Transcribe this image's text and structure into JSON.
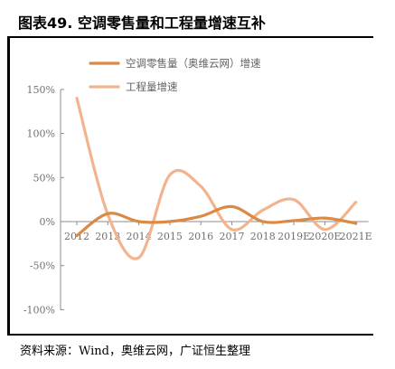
{
  "title": "图表49.  空调零售量和工程量增速互补",
  "source": "资料来源：Wind，奥维云网，广证恒生整理",
  "chart_data": {
    "type": "line",
    "categories": [
      "2012",
      "2013",
      "2014",
      "2015",
      "2016",
      "2017",
      "2018",
      "2019E",
      "2020E",
      "2021E"
    ],
    "series": [
      {
        "name": "空调零售量（奥维云网）增速",
        "color": "#DA8A44",
        "values": [
          -16,
          9,
          0,
          0,
          6,
          17,
          0,
          1,
          4,
          -2
        ]
      },
      {
        "name": "工程量增速",
        "color": "#F2B48F",
        "values": [
          140,
          8,
          -41,
          53,
          40,
          -9,
          13,
          25,
          -9,
          22
        ]
      }
    ],
    "yticks": [
      -100,
      -50,
      0,
      50,
      100,
      150
    ],
    "ytick_labels": [
      "-100%",
      "-50%",
      "0%",
      "50%",
      "100%",
      "150%"
    ],
    "ylim": [
      -100,
      150
    ],
    "legend_position": "top",
    "grid": false,
    "smooth": true
  }
}
